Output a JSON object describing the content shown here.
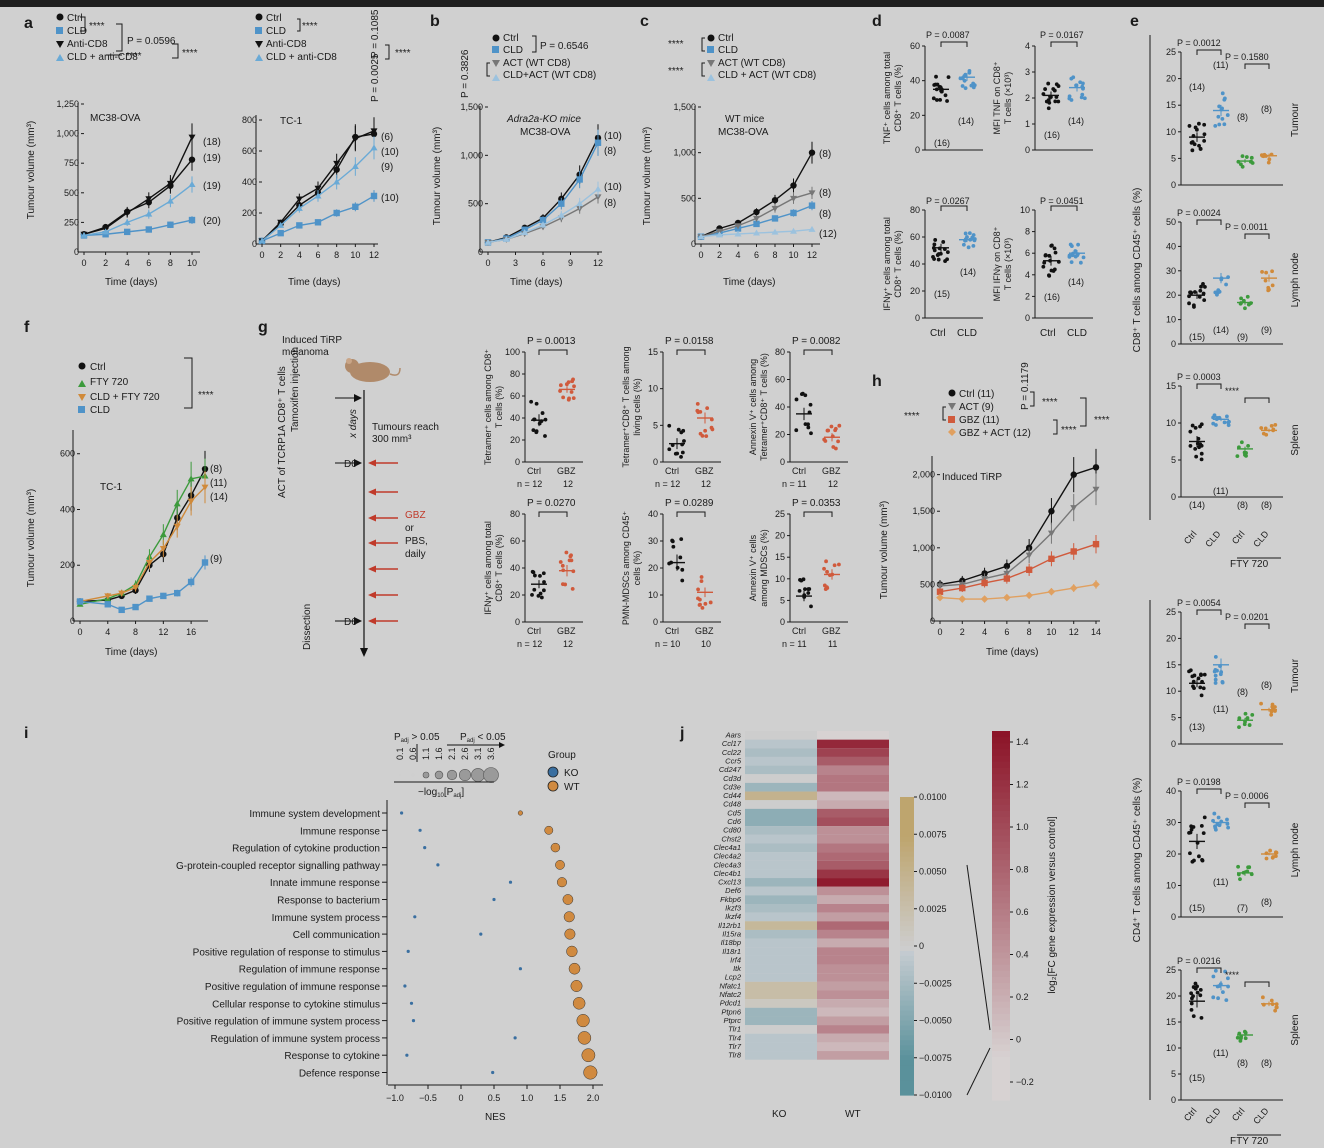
{
  "colors": {
    "ctrl": "#111111",
    "cld": "#4f93c8",
    "antiCD8": "#111111",
    "cldAnti": "#6aaad6",
    "act": "#777777",
    "gbz": "#d05a3c",
    "gbzAct": "#e0a060",
    "fty": "#3c9a3c",
    "cldFty": "#d08a3a",
    "ko": "#3a6fa0",
    "wt": "#d08a40"
  },
  "panels": {
    "a": "a",
    "b": "b",
    "c": "c",
    "d": "d",
    "e": "e",
    "f": "f",
    "g": "g",
    "h": "h",
    "i": "i",
    "j": "j"
  },
  "a": {
    "legend": [
      "Ctrl",
      "CLD",
      "Anti-CD8",
      "CLD + anti-CD8"
    ],
    "pvals": [
      "P = 0.0596",
      "P = 0.1085",
      "P = 0.0025"
    ],
    "stars": "****",
    "ylabel": "Tumour volume (mm³)",
    "xlabel": "Time (days)",
    "left": {
      "title": "MC38-OVA",
      "yticks": [
        "0",
        "250",
        "500",
        "750",
        "1,000",
        "1,250"
      ],
      "xticks": [
        "0",
        "2",
        "4",
        "6",
        "8",
        "10"
      ],
      "ns": [
        "(18)",
        "(19)",
        "(19)",
        "(20)"
      ]
    },
    "right": {
      "title": "TC-1",
      "yticks": [
        "0",
        "200",
        "400",
        "600",
        "800"
      ],
      "xticks": [
        "0",
        "2",
        "4",
        "6",
        "8",
        "10",
        "12"
      ],
      "ns": [
        "(6)",
        "(10)",
        "(9)",
        "(10)"
      ]
    }
  },
  "b": {
    "legend": [
      "Ctrl",
      "CLD",
      "ACT (WT CD8)",
      "CLD+ACT (WT CD8)"
    ],
    "pvals": [
      "P = 0.6546",
      "P = 0.3826"
    ],
    "title1": "Adra2a-KO mice",
    "title2": "MC38-OVA",
    "yticks": [
      "0",
      "500",
      "1,000",
      "1,500"
    ],
    "xticks": [
      "0",
      "3",
      "6",
      "9",
      "12"
    ],
    "ns": [
      "(10)",
      "(8)",
      "(10)",
      "(8)"
    ],
    "xlabel": "Time (days)",
    "ylabel": "Tumour volume (mm³)"
  },
  "c": {
    "legend": [
      "Ctrl",
      "CLD",
      "ACT (WT CD8)",
      "CLD + ACT (WT CD8)"
    ],
    "stars": "****",
    "title1": "WT mice",
    "title2": "MC38-OVA",
    "yticks": [
      "0",
      "500",
      "1,000",
      "1,500"
    ],
    "xticks": [
      "0",
      "2",
      "4",
      "6",
      "8",
      "10",
      "12"
    ],
    "ns": [
      "(8)",
      "(8)",
      "(8)",
      "(12)"
    ],
    "xlabel": "Time (days)",
    "ylabel": "Tumour volume (mm³)"
  },
  "d": {
    "p": [
      "P = 0.0087",
      "P = 0.0167",
      "P = 0.0267",
      "P = 0.0451"
    ],
    "ylabels": [
      "TNF⁺ cells among total CD8⁺ T cells (%)",
      "MFI TNF on CD8⁺ T cells (×10³)",
      "IFNγ⁺ cells among total CD8⁺ T cells (%)",
      "MFI IFNγ on CD8⁺ T cells (×10³)"
    ],
    "ns": [
      "(16)",
      "(14)"
    ],
    "ns2": [
      "(15)",
      "(14)"
    ],
    "ns3": [
      "(16)",
      "(14)"
    ],
    "xcats": [
      "Ctrl",
      "CLD"
    ],
    "yt1": [
      "0",
      "20",
      "40",
      "60"
    ],
    "yt2": [
      "0",
      "1",
      "2",
      "3",
      "4"
    ],
    "yt3": [
      "0",
      "20",
      "40",
      "60",
      "80"
    ],
    "yt4": [
      "0",
      "2",
      "4",
      "6",
      "8",
      "10"
    ]
  },
  "e": {
    "ylabel_top": "CD8⁺ T cells among CD45⁺ cells (%)",
    "ylabel_bot": "CD4⁺ T cells among CD45⁺ cells (%)",
    "rows": [
      "Tumour",
      "Lymph node",
      "Spleen"
    ],
    "p_top": [
      "P = 0.0012",
      "P = 0.1580",
      "P = 0.0024",
      "P = 0.0011",
      "P = 0.0003",
      "****"
    ],
    "p_bot": [
      "P = 0.0054",
      "P = 0.0201",
      "P = 0.0198",
      "P = 0.0006",
      "P = 0.0216",
      "****"
    ],
    "ns_top": [
      [
        "(14)",
        "(11)",
        "(8)",
        "(8)"
      ],
      [
        "(15)",
        "(14)",
        "(9)",
        "(9)"
      ],
      [
        "(14)",
        "(11)",
        "(8)",
        "(8)"
      ]
    ],
    "ns_bot": [
      [
        "(13)",
        "(11)",
        "(8)",
        "(8)"
      ],
      [
        "(15)",
        "(11)",
        "(7)",
        "(8)"
      ],
      [
        "(15)",
        "(11)",
        "(8)",
        "(8)"
      ]
    ],
    "xcats": [
      "Ctrl",
      "CLD",
      "Ctrl",
      "CLD"
    ],
    "fty": "FTY 720",
    "yt_t1": [
      "0",
      "5",
      "10",
      "15",
      "20",
      "25"
    ],
    "yt_t2": [
      "0",
      "10",
      "20",
      "30",
      "40",
      "50"
    ],
    "yt_t3": [
      "0",
      "5",
      "10",
      "15"
    ],
    "yt_b1": [
      "0",
      "5",
      "10",
      "15",
      "20",
      "25"
    ],
    "yt_b2": [
      "0",
      "10",
      "20",
      "30",
      "40"
    ],
    "yt_b3": [
      "0",
      "5",
      "10",
      "15",
      "20",
      "25"
    ]
  },
  "f": {
    "legend": [
      "Ctrl",
      "FTY 720",
      "CLD + FTY 720",
      "CLD"
    ],
    "stars": "****",
    "title": "TC-1",
    "yticks": [
      "0",
      "200",
      "400",
      "600"
    ],
    "xticks": [
      "0",
      "4",
      "8",
      "12",
      "16"
    ],
    "ns": [
      "(8)",
      "(11)",
      "(14)",
      "(9)"
    ],
    "xlabel": "Time (days)",
    "ylabel": "Tumour volume (mm³)"
  },
  "g": {
    "schema": {
      "title1": "Induced TiRP",
      "title2": "melanoma",
      "tamoxifen": "Tamoxifen injection",
      "act": "ACT of TCRP1A CD8⁺ T cells",
      "dissection": "Dissection",
      "xdays": "x days",
      "d0": "D0",
      "d6": "D6",
      "reach1": "Tumours reach",
      "reach2": "300 mm³",
      "gbz": "GBZ",
      "or": "or",
      "pbs": "PBS,",
      "daily": "daily"
    },
    "plots": [
      {
        "p": "P = 0.0013",
        "ylabel": "Tetramer⁺ cells among CD8⁺ T cells (%)",
        "yt": [
          "0",
          "20",
          "40",
          "60",
          "80",
          "100"
        ],
        "n": [
          "n = 12",
          "12"
        ]
      },
      {
        "p": "P = 0.0158",
        "ylabel": "Tetramer⁺CD8⁺ T cells among living cells (%)",
        "yt": [
          "0",
          "5",
          "10",
          "15"
        ],
        "n": [
          "n = 12",
          "12"
        ]
      },
      {
        "p": "P = 0.0082",
        "ylabel": "Annexin V⁺ cells among Tetramer⁺CD8⁺ T cells (%)",
        "yt": [
          "0",
          "20",
          "40",
          "60",
          "80"
        ],
        "n": [
          "n = 11",
          "12"
        ]
      },
      {
        "p": "P = 0.0270",
        "ylabel": "IFNγ⁺ cells among total CD8⁺ T cells (%)",
        "yt": [
          "0",
          "20",
          "40",
          "60",
          "80"
        ],
        "n": [
          "n = 12",
          "12"
        ]
      },
      {
        "p": "P = 0.0289",
        "ylabel": "PMN-MDSCs among CD45⁺ cells (%)",
        "yt": [
          "0",
          "10",
          "20",
          "30",
          "40"
        ],
        "n": [
          "n = 10",
          "10"
        ]
      },
      {
        "p": "P = 0.0353",
        "ylabel": "Annexin V⁺ cells among MDSCs (%)",
        "yt": [
          "0",
          "5",
          "10",
          "15",
          "20",
          "25"
        ],
        "n": [
          "n = 11",
          "11"
        ]
      }
    ],
    "xcats": [
      "Ctrl",
      "GBZ"
    ]
  },
  "h": {
    "legend": [
      "Ctrl (11)",
      "ACT (9)",
      "GBZ (11)",
      "GBZ + ACT (12)"
    ],
    "p": "P = 0.1179",
    "stars": "****",
    "title": "Induced TiRP",
    "yticks": [
      "0",
      "500",
      "1,000",
      "1,500",
      "2,000"
    ],
    "xticks": [
      "0",
      "2",
      "4",
      "6",
      "8",
      "10",
      "12",
      "14"
    ],
    "xlabel": "Time (days)",
    "ylabel": "Tumour volume (mm³)"
  },
  "i": {
    "sizeLegend": {
      "p1": "P",
      "adj1": "adj",
      "gt": " > 0.05",
      "p2": "P",
      "adj2": "adj",
      "lt": " < 0.05",
      "vals": [
        "0.1",
        "0.6",
        "1.1",
        "1.6",
        "2.1",
        "2.6",
        "3.1",
        "3.6"
      ],
      "axis": "−log",
      "axis10": "10",
      "axisp": "[P",
      "axisadj": "adj",
      "axisend": "]"
    },
    "group": {
      "title": "Group",
      "ko": "KO",
      "wt": "WT"
    },
    "terms": [
      "Immune system development",
      "Immune response",
      "Regulation of cytokine production",
      "G-protein-coupled receptor signalling pathway",
      "Innate immune response",
      "Response to bacterium",
      "Immune system process",
      "Cell communication",
      "Positive regulation of response to stimulus",
      "Regulation of immune response",
      "Positive regulation of immune response",
      "Cellular response to cytokine stimulus",
      "Positive regulation of immune system process",
      "Regulation of immune system process",
      "Response to cytokine",
      "Defence response"
    ],
    "ko_nes": [
      -0.9,
      -0.62,
      -0.55,
      -0.35,
      0.75,
      0.5,
      -0.7,
      0.3,
      -0.8,
      0.9,
      -0.85,
      -0.75,
      -0.72,
      0.82,
      -0.82,
      0.48
    ],
    "wt_nes": [
      0.9,
      1.33,
      1.43,
      1.5,
      1.53,
      1.62,
      1.64,
      1.65,
      1.68,
      1.72,
      1.75,
      1.79,
      1.85,
      1.87,
      1.93,
      1.96
    ],
    "wt_size": [
      0.7,
      1.9,
      2.1,
      2.2,
      2.3,
      2.5,
      2.6,
      2.6,
      2.7,
      2.8,
      2.9,
      3.1,
      3.3,
      3.4,
      3.5,
      3.6
    ],
    "xticks": [
      "−1.0",
      "−0.5",
      "0",
      "0.5",
      "1.0",
      "1.5",
      "2.0"
    ],
    "xlabel": "NES"
  },
  "j": {
    "genes": [
      "Aars",
      "Ccl17",
      "Ccl22",
      "Ccr5",
      "Cd247",
      "Cd3d",
      "Cd3e",
      "Cd44",
      "Cd48",
      "Cd5",
      "Cd6",
      "Cd80",
      "Chst2",
      "Clec4a1",
      "Clec4a2",
      "Clec4a3",
      "Clec4b1",
      "Cxcl13",
      "Def6",
      "Fkbp6",
      "Ikzf3",
      "Ikzf4",
      "Il12rb1",
      "Il15ra",
      "Il18bp",
      "Il18r1",
      "Irf4",
      "Itk",
      "Lcp2",
      "Nfatc1",
      "Nfatc2",
      "Pdcd1",
      "Ptpn6",
      "Ptprc",
      "Tlr1",
      "Tlr4",
      "Tlr7",
      "Tlr8"
    ],
    "ko_vals": [
      0.0,
      -0.001,
      -0.002,
      -0.001,
      -0.002,
      0.0,
      -0.003,
      0.005,
      0.0,
      -0.004,
      -0.004,
      -0.002,
      -0.001,
      -0.002,
      -0.001,
      -0.001,
      -0.001,
      -0.003,
      -0.001,
      -0.003,
      -0.002,
      -0.001,
      0.004,
      -0.002,
      -0.001,
      -0.001,
      -0.001,
      -0.001,
      -0.001,
      0.003,
      0.003,
      0.001,
      -0.003,
      -0.003,
      0.0,
      -0.001,
      -0.001,
      -0.001
    ],
    "wt_vals": [
      0.0,
      1.3,
      1.1,
      0.9,
      0.6,
      0.7,
      0.7,
      0.2,
      0.3,
      0.9,
      1.0,
      0.5,
      0.5,
      0.7,
      0.8,
      0.9,
      1.2,
      1.4,
      0.5,
      0.3,
      0.6,
      0.4,
      0.8,
      0.6,
      0.3,
      0.6,
      0.6,
      0.5,
      0.5,
      0.4,
      0.5,
      0.3,
      0.2,
      0.4,
      0.6,
      0.3,
      0.2,
      0.4
    ],
    "xcats": [
      "KO",
      "WT"
    ],
    "cbar1": [
      "0.0100",
      "0.0075",
      "0.0050",
      "0.0025",
      "0",
      "−0.0025",
      "−0.0050",
      "−0.0075",
      "−0.0100"
    ],
    "cbar2": [
      "1.4",
      "1.2",
      "1.0",
      "0.8",
      "0.6",
      "0.4",
      "0.2",
      "0",
      "−0.2"
    ],
    "cbar_label": "log₂[FC gene expression versus control]"
  },
  "chart_data": [
    {
      "panel": "a-left",
      "type": "line",
      "title": "MC38-OVA",
      "xlabel": "Time (days)",
      "ylabel": "Tumour volume (mm³)",
      "x": [
        0,
        2,
        4,
        6,
        8,
        10
      ],
      "ylim": [
        0,
        1250
      ],
      "series": [
        {
          "name": "Ctrl",
          "values": [
            150,
            210,
            340,
            420,
            560,
            780
          ]
        },
        {
          "name": "CLD",
          "values": [
            140,
            150,
            170,
            190,
            230,
            270
          ]
        },
        {
          "name": "Anti-CD8",
          "values": [
            150,
            200,
            330,
            450,
            580,
            970
          ]
        },
        {
          "name": "CLD + anti-CD8",
          "values": [
            140,
            170,
            250,
            320,
            430,
            570
          ]
        }
      ]
    },
    {
      "panel": "a-right",
      "type": "line",
      "title": "TC-1",
      "xlabel": "Time (days)",
      "ylabel": "Tumour volume (mm³)",
      "x": [
        0,
        2,
        4,
        6,
        8,
        10,
        12
      ],
      "ylim": [
        0,
        800
      ],
      "series": [
        {
          "name": "Ctrl",
          "values": [
            20,
            130,
            250,
            330,
            480,
            690,
            710
          ]
        },
        {
          "name": "CLD",
          "values": [
            20,
            70,
            120,
            140,
            200,
            240,
            310
          ]
        },
        {
          "name": "Anti-CD8",
          "values": [
            20,
            140,
            290,
            360,
            520,
            680,
            730
          ]
        },
        {
          "name": "CLD + anti-CD8",
          "values": [
            20,
            120,
            230,
            310,
            400,
            500,
            620
          ]
        }
      ]
    },
    {
      "panel": "b",
      "type": "line",
      "title": "Adra2a-KO mice MC38-OVA",
      "xlabel": "Time (days)",
      "ylabel": "Tumour volume (mm³)",
      "x": [
        0,
        2,
        4,
        6,
        8,
        10,
        12
      ],
      "ylim": [
        0,
        1500
      ],
      "series": [
        {
          "name": "Ctrl",
          "values": [
            100,
            150,
            250,
            350,
            550,
            800,
            1180
          ]
        },
        {
          "name": "CLD",
          "values": [
            100,
            140,
            230,
            330,
            500,
            750,
            1130
          ]
        },
        {
          "name": "ACT (WT CD8)",
          "values": [
            100,
            130,
            190,
            260,
            350,
            450,
            570
          ]
        },
        {
          "name": "CLD+ACT (WT CD8)",
          "values": [
            100,
            130,
            200,
            280,
            380,
            500,
            650
          ]
        }
      ]
    },
    {
      "panel": "c",
      "type": "line",
      "title": "WT mice MC38-OVA",
      "xlabel": "Time (days)",
      "ylabel": "Tumour volume (mm³)",
      "x": [
        0,
        2,
        4,
        6,
        8,
        10,
        12
      ],
      "ylim": [
        0,
        1500
      ],
      "series": [
        {
          "name": "Ctrl",
          "values": [
            80,
            170,
            230,
            350,
            480,
            640,
            1000
          ]
        },
        {
          "name": "CLD",
          "values": [
            80,
            120,
            170,
            220,
            280,
            340,
            420
          ]
        },
        {
          "name": "ACT (WT CD8)",
          "values": [
            80,
            140,
            200,
            280,
            390,
            500,
            560
          ]
        },
        {
          "name": "CLD + ACT (WT CD8)",
          "values": [
            80,
            100,
            110,
            120,
            130,
            140,
            160
          ]
        }
      ]
    },
    {
      "panel": "f",
      "type": "line",
      "title": "TC-1",
      "xlabel": "Time (days)",
      "ylabel": "Tumour volume (mm³)",
      "x": [
        0,
        4,
        6,
        8,
        10,
        12,
        14,
        16,
        18
      ],
      "ylim": [
        0,
        600
      ],
      "series": [
        {
          "name": "Ctrl",
          "values": [
            70,
            75,
            90,
            110,
            200,
            240,
            370,
            450,
            545
          ]
        },
        {
          "name": "FTY 720",
          "values": [
            60,
            80,
            100,
            130,
            230,
            310,
            420,
            510,
            520
          ]
        },
        {
          "name": "CLD + FTY 720",
          "values": [
            70,
            90,
            100,
            120,
            210,
            260,
            340,
            430,
            480
          ]
        },
        {
          "name": "CLD",
          "values": [
            70,
            60,
            40,
            50,
            80,
            90,
            100,
            140,
            210
          ]
        }
      ]
    },
    {
      "panel": "h",
      "type": "line",
      "title": "Induced TiRP",
      "xlabel": "Time (days)",
      "ylabel": "Tumour volume (mm³)",
      "x": [
        0,
        2,
        4,
        6,
        8,
        10,
        12,
        14
      ],
      "ylim": [
        0,
        2200
      ],
      "series": [
        {
          "name": "Ctrl (11)",
          "values": [
            500,
            550,
            650,
            750,
            1000,
            1500,
            2000,
            2100
          ]
        },
        {
          "name": "ACT (9)",
          "values": [
            480,
            500,
            580,
            650,
            900,
            1200,
            1550,
            1800
          ]
        },
        {
          "name": "GBZ (11)",
          "values": [
            400,
            450,
            520,
            580,
            700,
            850,
            950,
            1050
          ]
        },
        {
          "name": "GBZ + ACT (12)",
          "values": [
            320,
            300,
            300,
            320,
            350,
            400,
            450,
            500
          ]
        }
      ]
    }
  ]
}
